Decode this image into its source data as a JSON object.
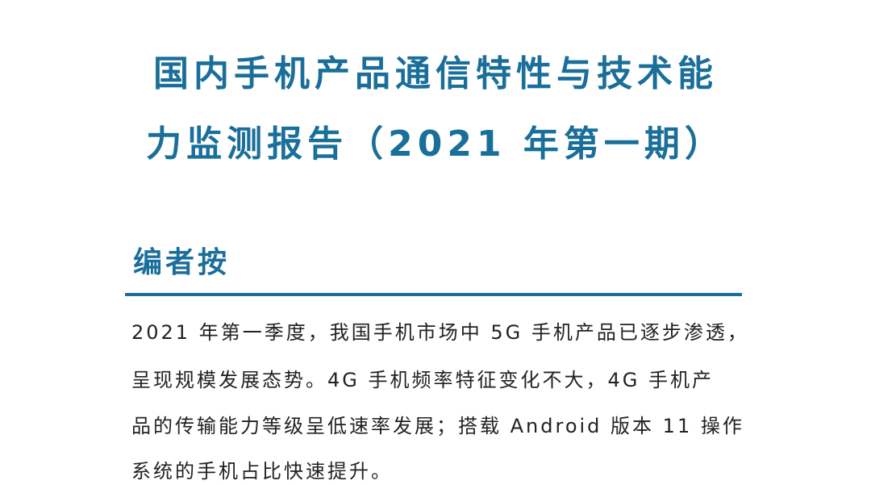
{
  "header": {
    "title_lines": [
      "国内手机产品通信特性与技术能",
      "力监测报告（2021 年第一期）"
    ]
  },
  "section": {
    "heading": "编者按",
    "lines": [
      "2021 年第一季度，我国手机市场中 5G 手机产品已逐步渗透，",
      "呈现规模发展态势。4G 手机频率特征变化不大，4G 手机产",
      "品的传输能力等级呈低速率发展；搭载 Android 版本 11 操作",
      "系统的手机占比快速提升。"
    ]
  }
}
